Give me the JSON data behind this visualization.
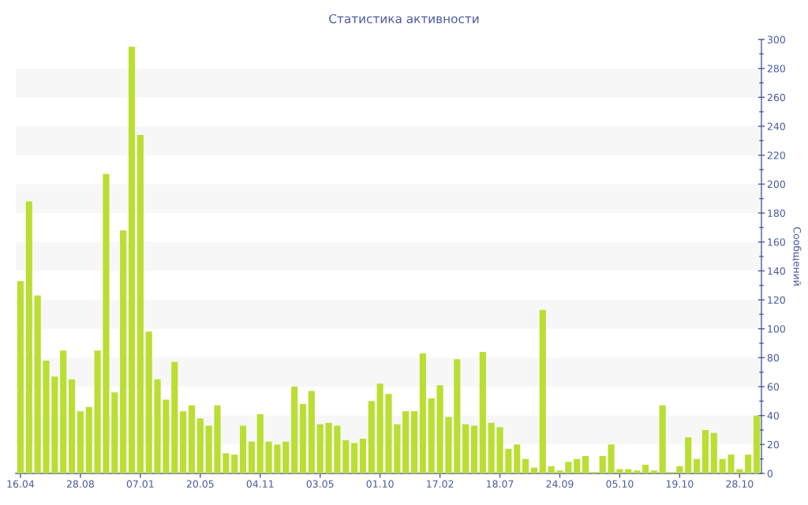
{
  "chart_data": {
    "type": "bar",
    "title": "Статистика активности",
    "ylabel": "Сообщений",
    "categories": [
      "16.04",
      null,
      null,
      null,
      null,
      null,
      null,
      "28.08",
      null,
      null,
      null,
      null,
      null,
      null,
      "07.01",
      null,
      null,
      null,
      null,
      null,
      null,
      "20.05",
      null,
      null,
      null,
      null,
      null,
      null,
      "04.11",
      null,
      null,
      null,
      null,
      null,
      null,
      "03.05",
      null,
      null,
      null,
      null,
      null,
      null,
      "01.10",
      null,
      null,
      null,
      null,
      null,
      null,
      "17.02",
      null,
      null,
      null,
      null,
      null,
      null,
      "18.07",
      null,
      null,
      null,
      null,
      null,
      null,
      "24.09",
      null,
      null,
      null,
      null,
      null,
      null,
      "05.10",
      null,
      null,
      null,
      null,
      null,
      null,
      "19.10",
      null,
      null,
      null,
      null,
      null,
      null,
      "28.10",
      null,
      null
    ],
    "values": [
      133,
      188,
      123,
      78,
      67,
      85,
      65,
      43,
      46,
      85,
      207,
      56,
      168,
      295,
      234,
      98,
      65,
      51,
      77,
      43,
      47,
      38,
      33,
      47,
      14,
      13,
      33,
      22,
      41,
      22,
      20,
      22,
      60,
      48,
      57,
      34,
      35,
      33,
      23,
      21,
      24,
      50,
      62,
      55,
      34,
      43,
      43,
      83,
      52,
      61,
      39,
      79,
      34,
      33,
      84,
      35,
      32,
      17,
      20,
      10,
      4,
      113,
      5,
      2,
      8,
      10,
      12,
      1,
      12,
      20,
      3,
      3,
      2,
      6,
      2,
      47,
      1,
      5,
      25,
      10,
      30,
      28,
      10,
      13,
      3,
      13,
      40
    ],
    "color": "#bade31",
    "ylim": [
      0,
      300
    ],
    "yticks": [
      0,
      {
        "value": 10,
        "label": null
      },
      20,
      {
        "value": 30,
        "label": null
      },
      40,
      {
        "value": 50,
        "label": null
      },
      60,
      {
        "value": 70,
        "label": null
      },
      80,
      {
        "value": 90,
        "label": null
      },
      100,
      {
        "value": 110,
        "label": null
      },
      120,
      {
        "value": 130,
        "label": null
      },
      140,
      {
        "value": 150,
        "label": null
      },
      160,
      {
        "value": 170,
        "label": null
      },
      180,
      {
        "value": 190,
        "label": null
      },
      200,
      {
        "value": 210,
        "label": null
      },
      220,
      {
        "value": 230,
        "label": null
      },
      240,
      {
        "value": 250,
        "label": null
      },
      260,
      {
        "value": 270,
        "label": null
      },
      280,
      {
        "value": 290,
        "label": null
      },
      300
    ],
    "bands": [
      {
        "axis": "y",
        "from": 20,
        "to": 40,
        "color": "#f7f7f7"
      },
      {
        "axis": "y",
        "from": 60,
        "to": 80,
        "color": "#f7f7f7"
      },
      {
        "axis": "y",
        "from": 100,
        "to": 120,
        "color": "#f7f7f7"
      },
      {
        "axis": "y",
        "from": 140,
        "to": 160,
        "color": "#f7f7f7"
      },
      {
        "axis": "y",
        "from": 180,
        "to": 200,
        "color": "#f7f7f7"
      },
      {
        "axis": "y",
        "from": 220,
        "to": 240,
        "color": "#f7f7f7"
      },
      {
        "axis": "y",
        "from": 260,
        "to": 280,
        "color": "#f7f7f7"
      }
    ]
  }
}
